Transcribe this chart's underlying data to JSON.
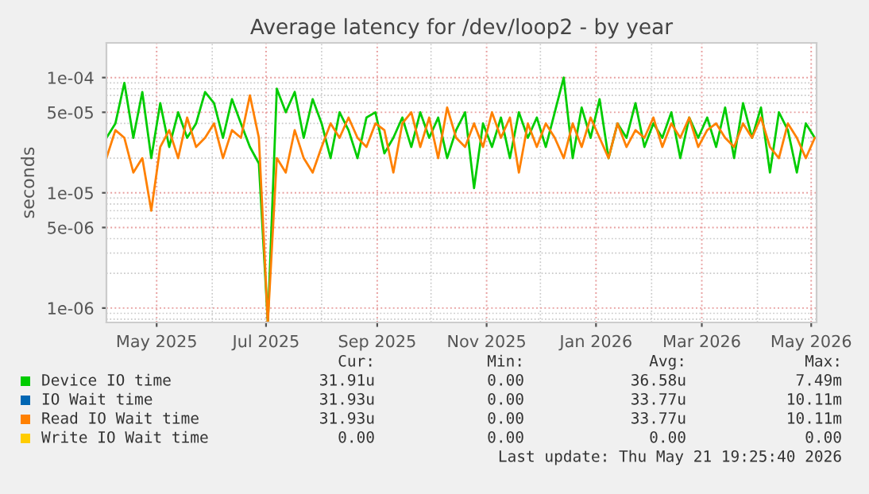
{
  "chart_data": {
    "type": "line",
    "title": "Average latency for /dev/loop2 - by year",
    "ylabel": "seconds",
    "log": "y",
    "grid": true,
    "legend": "bottom",
    "marker": "none",
    "line_style": "solid",
    "xlim": [
      "2025-04-03",
      "2026-05-04"
    ],
    "xticks": [
      {
        "value": "2025-05-01",
        "label": "May 2025"
      },
      {
        "value": "2025-07-01",
        "label": "Jul 2025"
      },
      {
        "value": "2025-09-01",
        "label": "Sep 2025"
      },
      {
        "value": "2025-11-01",
        "label": "Nov 2025"
      },
      {
        "value": "2026-01-01",
        "label": "Jan 2026"
      },
      {
        "value": "2026-03-01",
        "label": "Mar 2026"
      },
      {
        "value": "2026-05-01",
        "label": "May 2026"
      }
    ],
    "ylim": [
      7.5e-07,
      0.0002
    ],
    "yticks": [
      {
        "value": 1e-06,
        "label": "1e-06"
      },
      {
        "value": 5e-06,
        "label": "5e-06"
      },
      {
        "value": 1e-05,
        "label": "1e-05"
      },
      {
        "value": 5e-05,
        "label": "5e-05"
      },
      {
        "value": 0.0001,
        "label": "1e-04"
      }
    ],
    "x": [
      "2025-04-03",
      "2025-04-08",
      "2025-04-13",
      "2025-04-18",
      "2025-04-23",
      "2025-04-28",
      "2025-05-03",
      "2025-05-08",
      "2025-05-13",
      "2025-05-18",
      "2025-05-23",
      "2025-05-28",
      "2025-06-02",
      "2025-06-07",
      "2025-06-12",
      "2025-06-17",
      "2025-06-22",
      "2025-06-27",
      "2025-07-02",
      "2025-07-07",
      "2025-07-12",
      "2025-07-17",
      "2025-07-22",
      "2025-07-27",
      "2025-08-01",
      "2025-08-06",
      "2025-08-11",
      "2025-08-16",
      "2025-08-21",
      "2025-08-26",
      "2025-08-31",
      "2025-09-05",
      "2025-09-10",
      "2025-09-15",
      "2025-09-20",
      "2025-09-25",
      "2025-09-30",
      "2025-10-05",
      "2025-10-10",
      "2025-10-15",
      "2025-10-20",
      "2025-10-25",
      "2025-10-30",
      "2025-11-04",
      "2025-11-09",
      "2025-11-14",
      "2025-11-19",
      "2025-11-24",
      "2025-11-29",
      "2025-12-04",
      "2025-12-09",
      "2025-12-14",
      "2025-12-19",
      "2025-12-24",
      "2025-12-29",
      "2026-01-03",
      "2026-01-08",
      "2026-01-13",
      "2026-01-18",
      "2026-01-23",
      "2026-01-28",
      "2026-02-02",
      "2026-02-07",
      "2026-02-12",
      "2026-02-17",
      "2026-02-22",
      "2026-02-27",
      "2026-03-04",
      "2026-03-09",
      "2026-03-14",
      "2026-03-19",
      "2026-03-24",
      "2026-03-29",
      "2026-04-03",
      "2026-04-08",
      "2026-04-13",
      "2026-04-18",
      "2026-04-23",
      "2026-04-28",
      "2026-05-03"
    ],
    "series": [
      {
        "name": "Device IO time",
        "color": "#00cc00",
        "values": [
          3e-05,
          4e-05,
          9e-05,
          3e-05,
          7.5e-05,
          2e-05,
          6e-05,
          2.5e-05,
          5e-05,
          3e-05,
          4e-05,
          7.5e-05,
          6e-05,
          3e-05,
          6.5e-05,
          4e-05,
          2.5e-05,
          1.8e-05,
          7.5e-07,
          8e-05,
          5e-05,
          7.5e-05,
          3e-05,
          6.5e-05,
          4e-05,
          2e-05,
          5e-05,
          3.5e-05,
          2e-05,
          4.5e-05,
          5e-05,
          2.2e-05,
          3e-05,
          4.5e-05,
          2.5e-05,
          5e-05,
          3e-05,
          4.5e-05,
          2e-05,
          3.5e-05,
          5e-05,
          1.1e-05,
          4e-05,
          2.5e-05,
          4.5e-05,
          2e-05,
          5e-05,
          3e-05,
          4.5e-05,
          2.5e-05,
          5e-05,
          0.0001,
          2e-05,
          5.5e-05,
          3e-05,
          6.5e-05,
          2e-05,
          4e-05,
          3e-05,
          6e-05,
          2.5e-05,
          4e-05,
          3e-05,
          5e-05,
          2e-05,
          4.5e-05,
          3e-05,
          4.5e-05,
          2.5e-05,
          5.5e-05,
          2e-05,
          6e-05,
          3e-05,
          5.5e-05,
          1.5e-05,
          5e-05,
          3.5e-05,
          1.5e-05,
          4e-05,
          3e-05
        ]
      },
      {
        "name": "IO Wait time",
        "color": "#0066b3",
        "values": [
          null,
          null,
          null,
          null,
          null,
          null,
          null,
          null,
          null,
          null,
          null,
          null,
          null,
          null,
          null,
          null,
          null,
          null,
          null,
          null,
          null,
          null,
          null,
          null,
          null,
          null,
          null,
          null,
          null,
          null,
          null,
          null,
          null,
          null,
          null,
          null,
          null,
          null,
          null,
          null,
          null,
          null,
          null,
          null,
          null,
          null,
          null,
          null,
          null,
          null,
          null,
          null,
          null,
          null,
          null,
          null,
          null,
          null,
          null,
          null,
          null,
          null,
          null,
          null,
          null,
          null,
          null,
          null,
          null,
          null,
          null,
          null,
          null,
          null,
          null,
          null,
          null,
          null,
          null,
          null
        ]
      },
      {
        "name": "Read IO Wait time",
        "color": "#ff8000",
        "values": [
          2e-05,
          3.5e-05,
          3e-05,
          1.5e-05,
          2e-05,
          7e-06,
          2.5e-05,
          3.5e-05,
          2e-05,
          4.5e-05,
          2.5e-05,
          3e-05,
          4e-05,
          2e-05,
          3.5e-05,
          3e-05,
          7e-05,
          3e-05,
          7.5e-07,
          2e-05,
          1.5e-05,
          3.5e-05,
          2e-05,
          1.5e-05,
          2.5e-05,
          4e-05,
          3e-05,
          4.5e-05,
          3e-05,
          2.5e-05,
          4e-05,
          3.5e-05,
          1.5e-05,
          4e-05,
          5e-05,
          2.5e-05,
          4.5e-05,
          2e-05,
          5.5e-05,
          3e-05,
          2.5e-05,
          4e-05,
          2.5e-05,
          5e-05,
          3e-05,
          4.5e-05,
          1.5e-05,
          4e-05,
          2.5e-05,
          4e-05,
          3e-05,
          2e-05,
          4e-05,
          2.5e-05,
          4.5e-05,
          3e-05,
          2e-05,
          4e-05,
          2.5e-05,
          3.5e-05,
          3e-05,
          4.5e-05,
          2.5e-05,
          4e-05,
          3e-05,
          4.5e-05,
          2.5e-05,
          3.5e-05,
          4e-05,
          3e-05,
          2.5e-05,
          4e-05,
          3e-05,
          4.5e-05,
          2.5e-05,
          2e-05,
          4e-05,
          3e-05,
          2e-05,
          3e-05
        ]
      },
      {
        "name": "Write IO Wait time",
        "color": "#ffcc00",
        "values": [
          null,
          null,
          null,
          null,
          null,
          null,
          null,
          null,
          null,
          null,
          null,
          null,
          null,
          null,
          null,
          null,
          null,
          null,
          null,
          null,
          null,
          null,
          null,
          null,
          null,
          null,
          null,
          null,
          null,
          null,
          null,
          null,
          null,
          null,
          null,
          null,
          null,
          null,
          null,
          null,
          null,
          null,
          null,
          null,
          null,
          null,
          null,
          null,
          null,
          null,
          null,
          null,
          null,
          null,
          null,
          null,
          null,
          null,
          null,
          null,
          null,
          null,
          null,
          null,
          null,
          null,
          null,
          null,
          null,
          null,
          null,
          null,
          null,
          null,
          null,
          null,
          null,
          null,
          null,
          null
        ]
      }
    ],
    "annotations": [
      "Cur:",
      "Min:",
      "Avg:",
      "Max:",
      "31.91u",
      "0.00",
      "36.58u",
      "7.49m",
      "31.93u",
      "0.00",
      "33.77u",
      "10.11m",
      "31.93u",
      "0.00",
      "33.77u",
      "10.11m",
      "0.00",
      "0.00",
      "0.00",
      "0.00",
      "Last update: Thu May 21 19:25:40 2026"
    ]
  }
}
